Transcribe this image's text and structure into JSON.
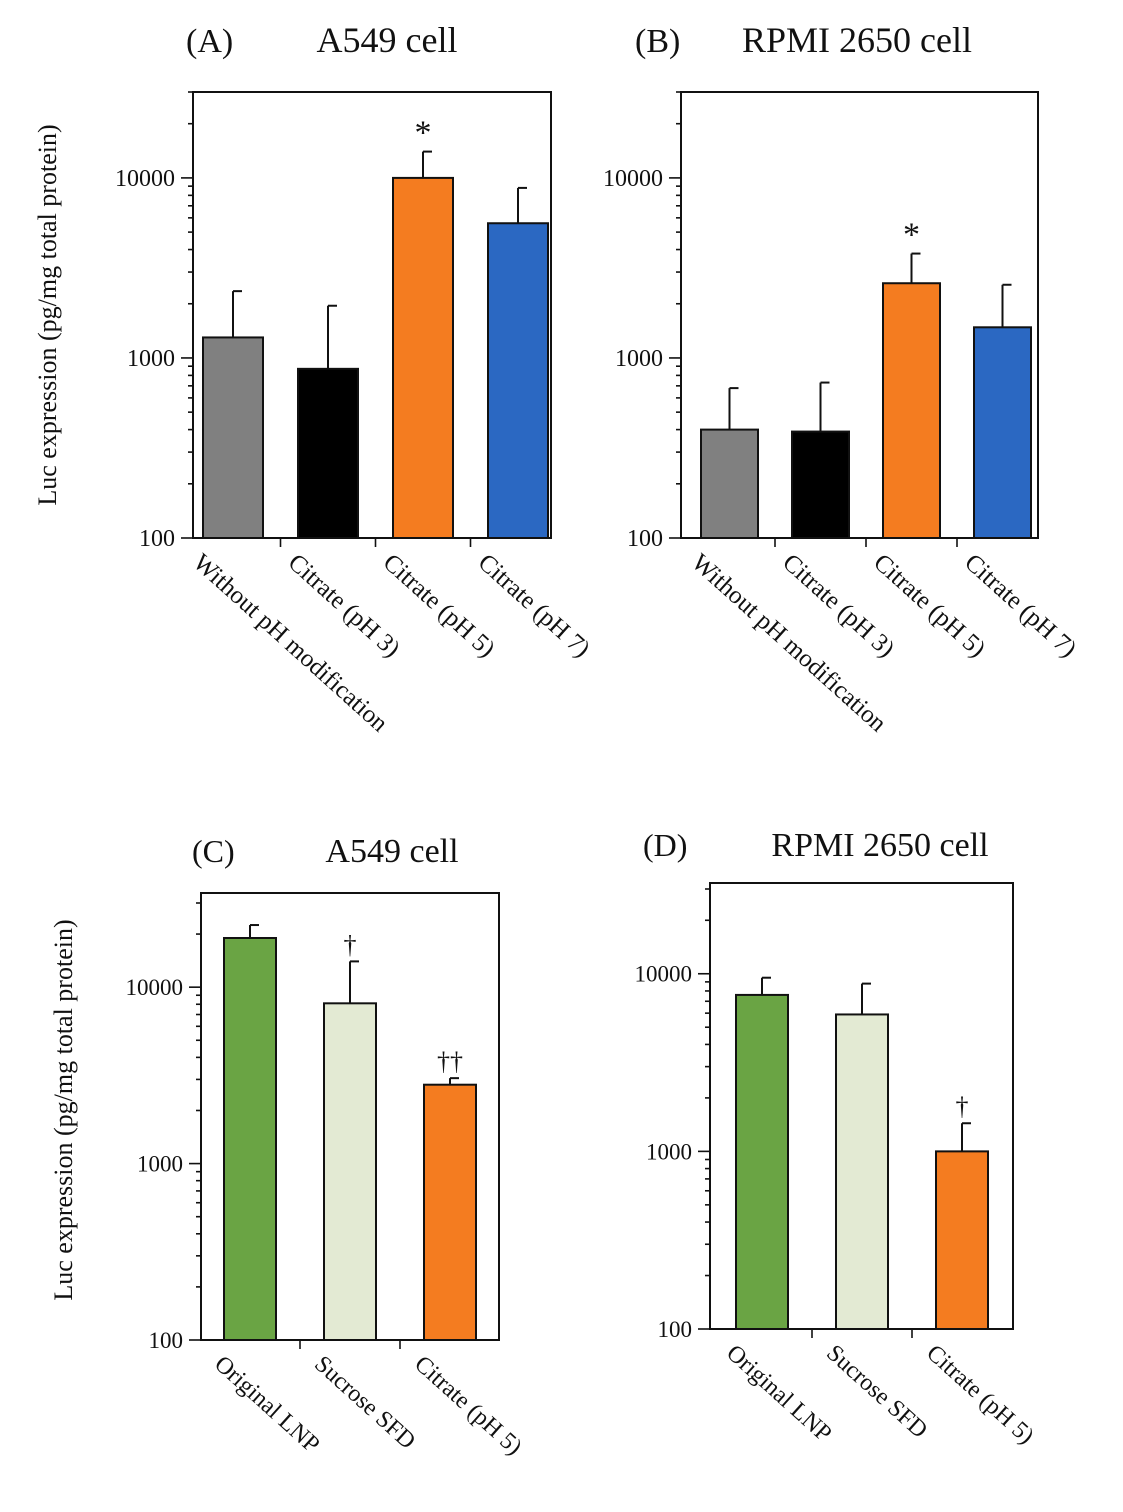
{
  "chart_data": [
    {
      "panel": "(A)",
      "title": "A549 cell",
      "type": "bar",
      "ylabel": "Luc expression (pg/mg total protein)",
      "yscale": "log",
      "ylim": [
        100,
        30000
      ],
      "yticks": [
        100,
        1000,
        10000
      ],
      "categories": [
        "Without pH modification",
        "Citrate (pH 3)",
        "Citrate (pH 5)",
        "Citrate (pH 7)"
      ],
      "values": [
        1300,
        870,
        10000,
        5600
      ],
      "errors_upper": [
        2350,
        1950,
        14000,
        8800
      ],
      "colors": [
        "#808080",
        "#000000",
        "#f47c20",
        "#2b68c2"
      ],
      "markers": [
        "",
        "",
        "*",
        ""
      ]
    },
    {
      "panel": "(B)",
      "title": "RPMI 2650 cell",
      "type": "bar",
      "ylabel": "",
      "yscale": "log",
      "ylim": [
        100,
        30000
      ],
      "yticks": [
        100,
        1000,
        10000
      ],
      "categories": [
        "Without pH modification",
        "Citrate (pH 3)",
        "Citrate (pH 5)",
        "Citrate (pH 7)"
      ],
      "values": [
        400,
        390,
        2600,
        1480
      ],
      "errors_upper": [
        680,
        730,
        3800,
        2550
      ],
      "colors": [
        "#808080",
        "#000000",
        "#f47c20",
        "#2b68c2"
      ],
      "markers": [
        "",
        "",
        "*",
        ""
      ]
    },
    {
      "panel": "(C)",
      "title": "A549 cell",
      "type": "bar",
      "ylabel": "Luc expression (pg/mg total protein)",
      "yscale": "log",
      "ylim": [
        100,
        30000
      ],
      "yticks": [
        100,
        1000,
        10000
      ],
      "categories": [
        "Original LNP",
        "Sucrose SFD",
        "Citrate (pH 5)"
      ],
      "values": [
        19000,
        8100,
        2800
      ],
      "errors_upper": [
        22500,
        14000,
        3050
      ],
      "colors": [
        "#6aa444",
        "#e3ead3",
        "#f47c20"
      ],
      "markers": [
        "",
        "†",
        "††"
      ]
    },
    {
      "panel": "(D)",
      "title": "RPMI 2650 cell",
      "type": "bar",
      "ylabel": "",
      "yscale": "log",
      "ylim": [
        100,
        30000
      ],
      "yticks": [
        100,
        1000,
        10000
      ],
      "categories": [
        "Original LNP",
        "Sucrose SFD",
        "Citrate (pH 5)"
      ],
      "values": [
        7600,
        5900,
        1000
      ],
      "errors_upper": [
        9500,
        8800,
        1440
      ],
      "colors": [
        "#6aa444",
        "#e3ead3",
        "#f47c20"
      ],
      "markers": [
        "",
        "",
        "†"
      ]
    }
  ]
}
